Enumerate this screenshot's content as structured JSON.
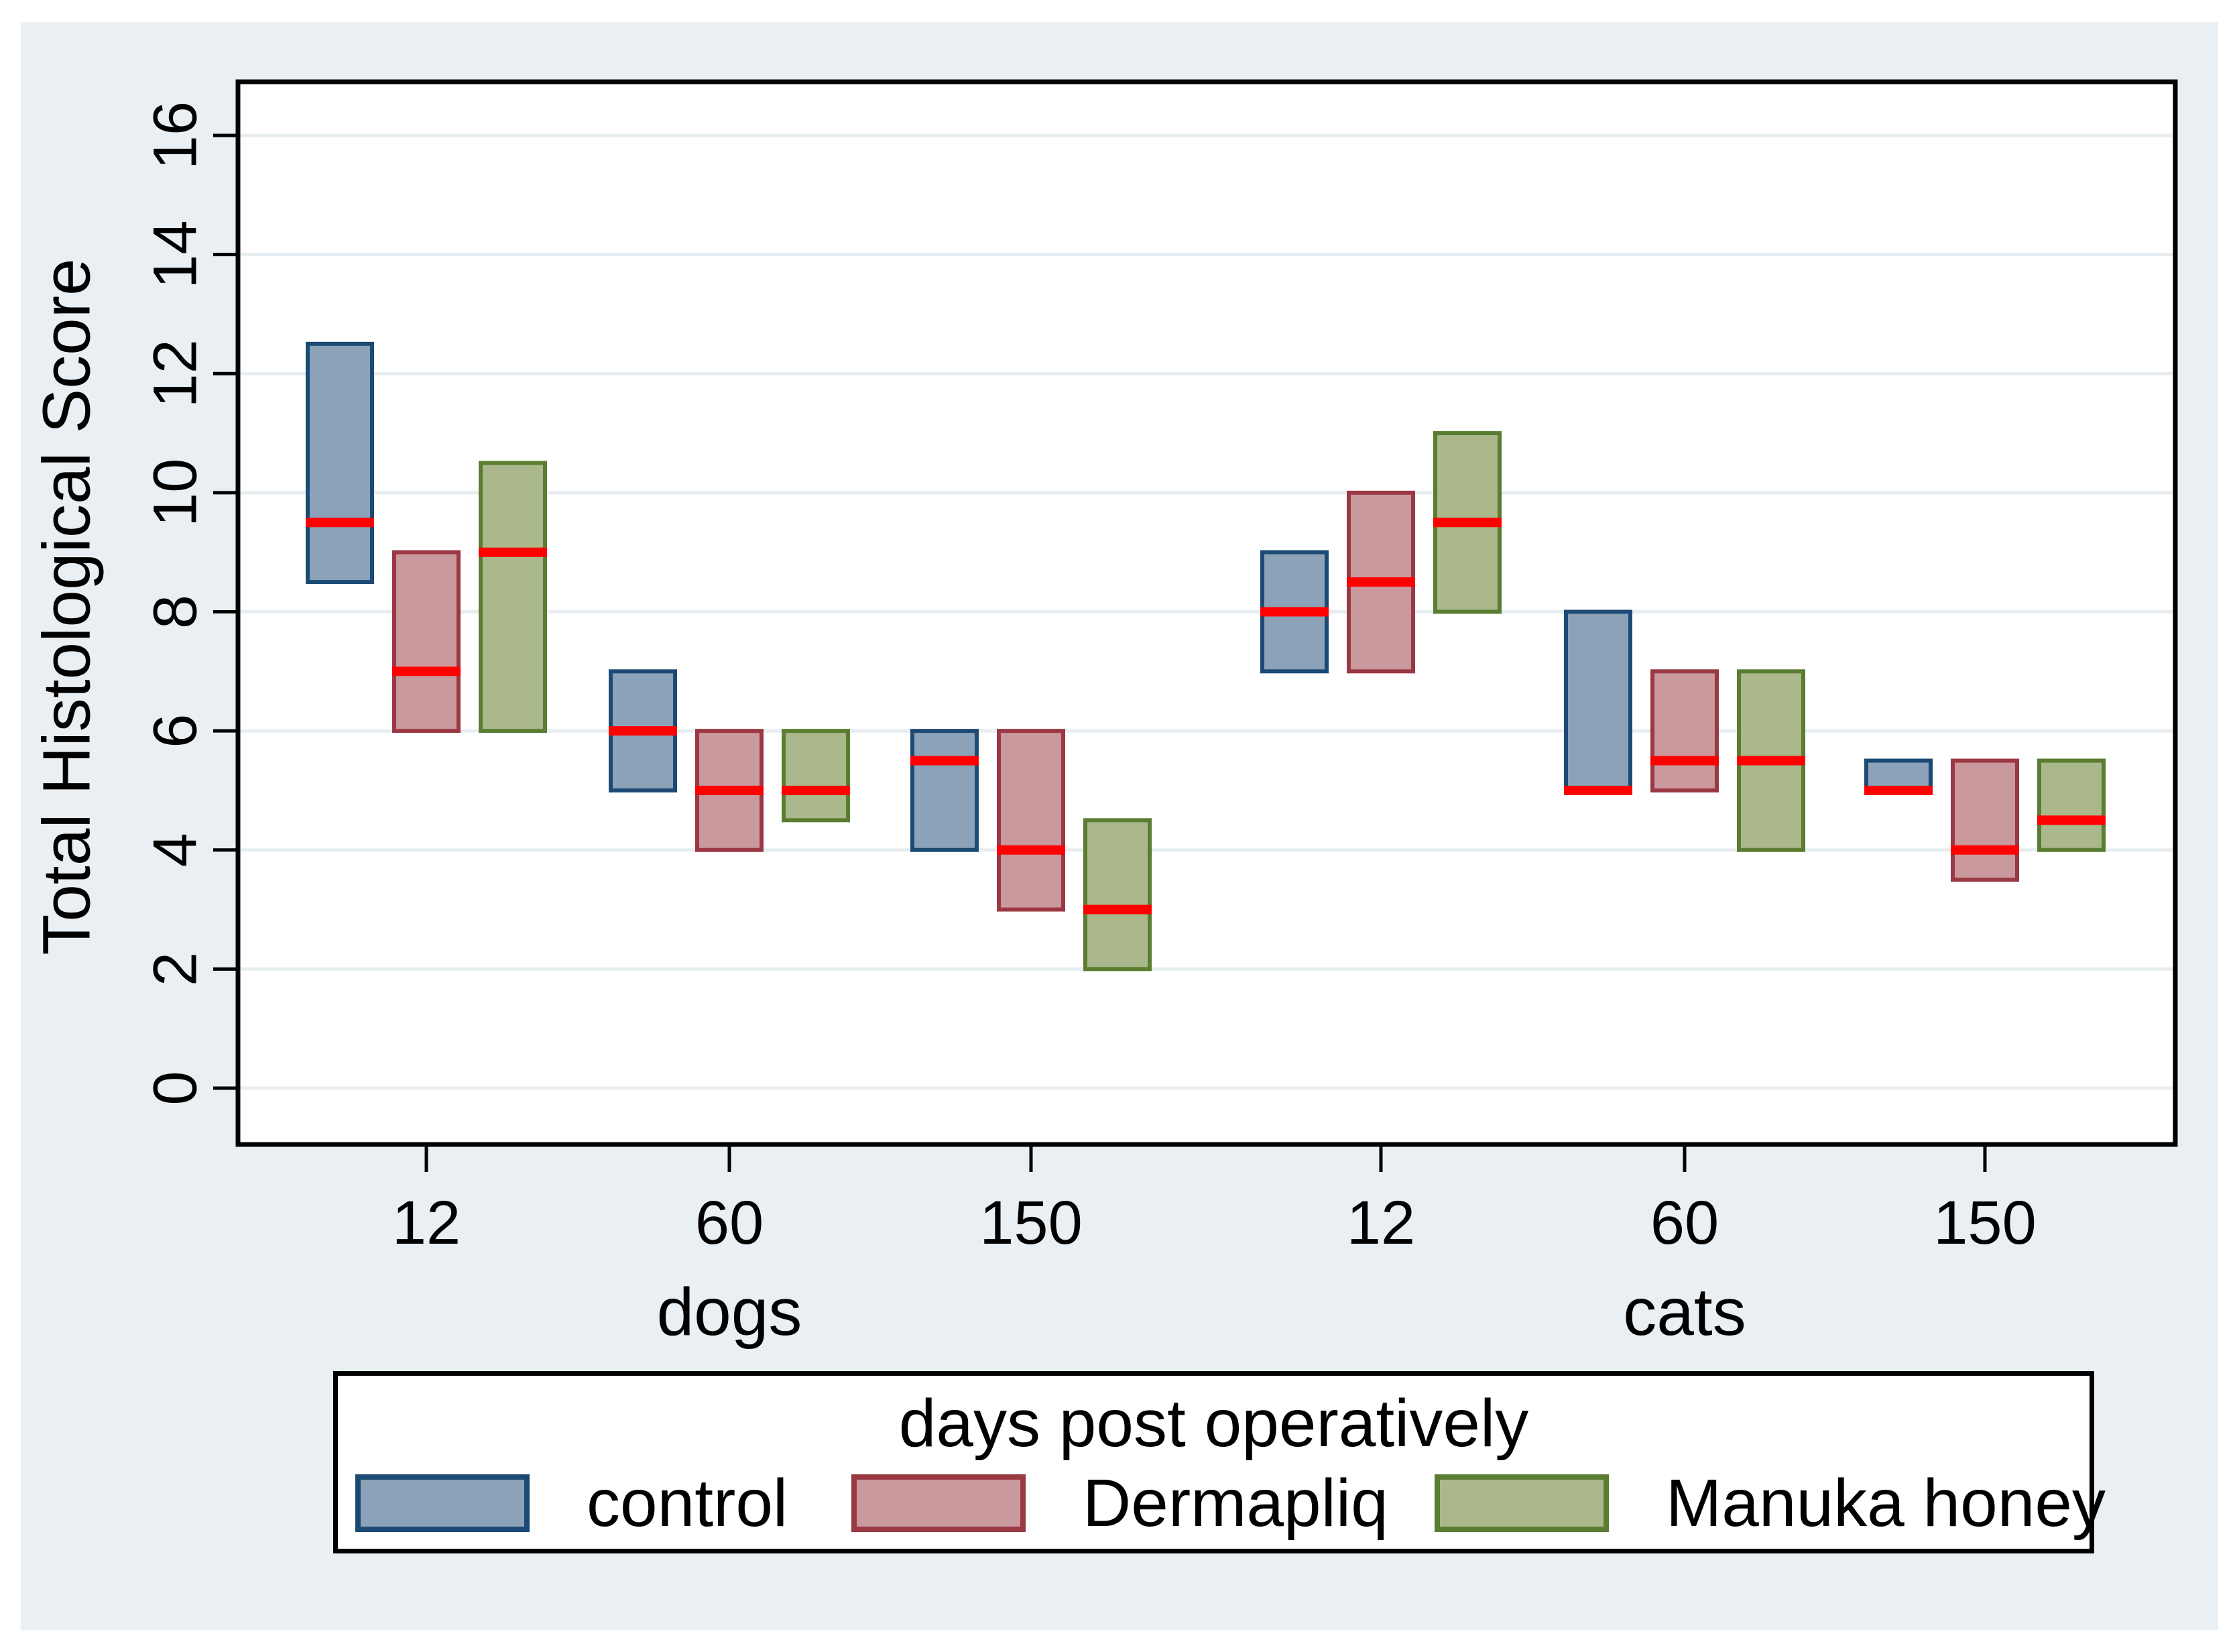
{
  "chart_data": {
    "type": "bar",
    "subtype": "grouped floating bars (min-max range) with median tick",
    "title": "",
    "ylabel": "Total Histological Score",
    "xlabel": "",
    "ylim": [
      0,
      16
    ],
    "yticks": [
      0,
      2,
      4,
      6,
      8,
      10,
      12,
      14,
      16
    ],
    "grid": "horizontal gridlines at every labeled y tick",
    "legend": {
      "title": "days post operatively",
      "position": "bottom",
      "entries": [
        {
          "label": "control",
          "fill": "#8ca2b8",
          "border": "#1c4a74"
        },
        {
          "label": "Dermapliq",
          "fill": "#ca999e",
          "border": "#9a3843"
        },
        {
          "label": "Manuka honey",
          "fill": "#aab88c",
          "border": "#5a7d31"
        }
      ]
    },
    "median_line_color": "#ff0000",
    "groups": [
      {
        "label": "dogs",
        "tick_labels": [
          "12",
          "60",
          "150"
        ],
        "ticks": [
          {
            "day": "12",
            "boxes": [
              {
                "series": "control",
                "min": 8.5,
                "median": 9.5,
                "max": 12.5
              },
              {
                "series": "Dermapliq",
                "min": 6,
                "median": 7,
                "max": 9
              },
              {
                "series": "Manuka honey",
                "min": 6,
                "median": 9,
                "max": 10.5
              }
            ]
          },
          {
            "day": "60",
            "boxes": [
              {
                "series": "control",
                "min": 5,
                "median": 6,
                "max": 7
              },
              {
                "series": "Dermapliq",
                "min": 4,
                "median": 5,
                "max": 6
              },
              {
                "series": "Manuka honey",
                "min": 4.5,
                "median": 5,
                "max": 6
              }
            ]
          },
          {
            "day": "150",
            "boxes": [
              {
                "series": "control",
                "min": 4,
                "median": 5.5,
                "max": 6
              },
              {
                "series": "Dermapliq",
                "min": 3,
                "median": 4,
                "max": 6
              },
              {
                "series": "Manuka honey",
                "min": 2,
                "median": 3,
                "max": 4.5
              }
            ]
          }
        ]
      },
      {
        "label": "cats",
        "tick_labels": [
          "12",
          "60",
          "150"
        ],
        "ticks": [
          {
            "day": "12",
            "boxes": [
              {
                "series": "control",
                "min": 7,
                "median": 8,
                "max": 9
              },
              {
                "series": "Dermapliq",
                "min": 7,
                "median": 8.5,
                "max": 10
              },
              {
                "series": "Manuka honey",
                "min": 8,
                "median": 9.5,
                "max": 11
              }
            ]
          },
          {
            "day": "60",
            "boxes": [
              {
                "series": "control",
                "min": 5,
                "median": 5,
                "max": 8
              },
              {
                "series": "Dermapliq",
                "min": 5,
                "median": 5.5,
                "max": 7
              },
              {
                "series": "Manuka honey",
                "min": 4,
                "median": 5.5,
                "max": 7
              }
            ]
          },
          {
            "day": "150",
            "boxes": [
              {
                "series": "control",
                "min": 5,
                "median": 5,
                "max": 5.5
              },
              {
                "series": "Dermapliq",
                "min": 3.5,
                "median": 4,
                "max": 5.5
              },
              {
                "series": "Manuka honey",
                "min": 4,
                "median": 4.5,
                "max": 5.5
              }
            ]
          }
        ]
      }
    ],
    "colors": {
      "page_background": "#ffffff",
      "graph_background": "#e9eff2",
      "plot_background": "#ffffff",
      "gridline": "#e7edf0",
      "frame": "#000000",
      "text": "#000000"
    }
  }
}
